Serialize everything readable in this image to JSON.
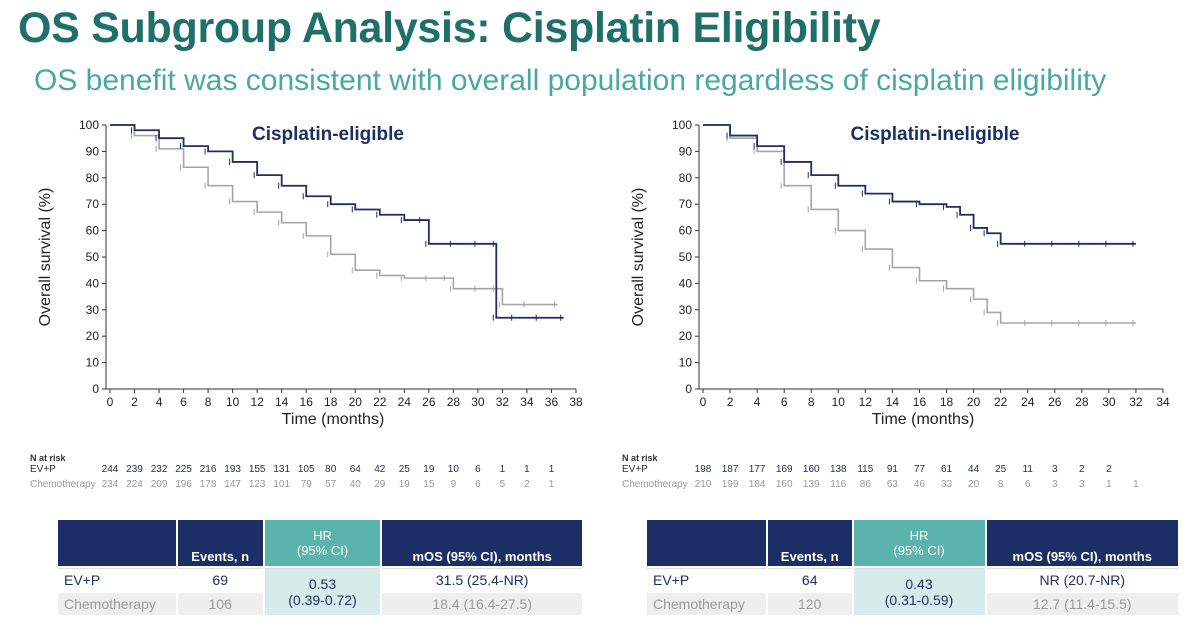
{
  "title": "OS Subgroup Analysis: Cisplatin Eligibility",
  "subtitle": "OS benefit was consistent with overall population regardless of cisplatin eligibility",
  "colors": {
    "evp": "#1b2f66",
    "chemo": "#a5a5a5",
    "title": "#1f6f6a",
    "hr_header": "#5ab3ad"
  },
  "chart_data": [
    {
      "type": "line",
      "title": "Cisplatin-eligible",
      "xlabel": "Time (months)",
      "ylabel": "Overall survival (%)",
      "xlim": [
        0,
        38
      ],
      "ylim": [
        0,
        100
      ],
      "xticks": [
        "0",
        "2",
        "4",
        "6",
        "8",
        "10",
        "12",
        "14",
        "16",
        "18",
        "20",
        "22",
        "24",
        "26",
        "28",
        "30",
        "32",
        "34",
        "36",
        "38"
      ],
      "yticks": [
        "0",
        "10",
        "20",
        "30",
        "40",
        "50",
        "60",
        "70",
        "80",
        "90",
        "100"
      ],
      "series": [
        {
          "name": "EV+P",
          "x": [
            0,
            2,
            4,
            6,
            8,
            10,
            12,
            14,
            16,
            18,
            20,
            22,
            24,
            25.5,
            26,
            28,
            30,
            31.5,
            31.5,
            33,
            35,
            37
          ],
          "y": [
            100,
            98,
            95,
            92,
            90,
            86,
            81,
            77,
            73,
            70,
            68,
            66,
            64,
            64,
            55,
            55,
            55,
            55,
            27,
            27,
            27,
            27
          ]
        },
        {
          "name": "Chemotherapy",
          "x": [
            0,
            2,
            4,
            6,
            8,
            10,
            12,
            14,
            16,
            18,
            20,
            22,
            24,
            26,
            27.5,
            28,
            30,
            31.5,
            32,
            34,
            36.5
          ],
          "y": [
            100,
            96,
            91,
            84,
            77,
            71,
            67,
            63,
            58,
            51,
            45,
            43,
            42,
            42,
            42,
            38,
            38,
            38,
            32,
            32,
            32
          ]
        }
      ],
      "at_risk": {
        "label": "N at risk",
        "rows": [
          {
            "name": "EV+P",
            "values": [
              "244",
              "239",
              "232",
              "225",
              "216",
              "193",
              "155",
              "131",
              "105",
              "80",
              "64",
              "42",
              "25",
              "19",
              "10",
              "6",
              "1",
              "1",
              "1"
            ]
          },
          {
            "name": "Chemotherapy",
            "values": [
              "234",
              "224",
              "209",
              "196",
              "178",
              "147",
              "123",
              "101",
              "79",
              "57",
              "40",
              "29",
              "19",
              "15",
              "9",
              "6",
              "5",
              "2",
              "1"
            ]
          }
        ]
      }
    },
    {
      "type": "line",
      "title": "Cisplatin-ineligible",
      "xlabel": "Time (months)",
      "ylabel": "Overall survival (%)",
      "xlim": [
        0,
        34
      ],
      "ylim": [
        0,
        100
      ],
      "xticks": [
        "0",
        "2",
        "4",
        "6",
        "8",
        "10",
        "12",
        "14",
        "16",
        "18",
        "20",
        "22",
        "24",
        "26",
        "28",
        "30",
        "32",
        "34"
      ],
      "yticks": [
        "0",
        "10",
        "20",
        "30",
        "40",
        "50",
        "60",
        "70",
        "80",
        "90",
        "100"
      ],
      "series": [
        {
          "name": "EV+P",
          "x": [
            0,
            2,
            4,
            6,
            8,
            10,
            12,
            14,
            16,
            18,
            19,
            20,
            21,
            22,
            24,
            26,
            28,
            30,
            32
          ],
          "y": [
            100,
            96,
            92,
            86,
            81,
            77,
            74,
            71,
            70,
            69,
            66,
            61,
            59,
            55,
            55,
            55,
            55,
            55,
            55
          ]
        },
        {
          "name": "Chemotherapy",
          "x": [
            0,
            2,
            4,
            6,
            8,
            10,
            12,
            14,
            16,
            18,
            20,
            21,
            22,
            24,
            26,
            28,
            30,
            32
          ],
          "y": [
            100,
            95,
            90,
            77,
            68,
            60,
            53,
            46,
            41,
            38,
            34,
            29,
            25,
            25,
            25,
            25,
            25,
            25
          ]
        }
      ],
      "at_risk": {
        "label": "N at risk",
        "rows": [
          {
            "name": "EV+P",
            "values": [
              "198",
              "187",
              "177",
              "169",
              "160",
              "138",
              "115",
              "91",
              "77",
              "61",
              "44",
              "25",
              "11",
              "3",
              "2",
              "2"
            ]
          },
          {
            "name": "Chemotherapy",
            "values": [
              "210",
              "199",
              "184",
              "160",
              "139",
              "116",
              "86",
              "63",
              "46",
              "33",
              "20",
              "8",
              "6",
              "3",
              "3",
              "1",
              "1"
            ]
          }
        ]
      }
    }
  ],
  "tables": [
    {
      "headers": {
        "events": "Events, n",
        "hr": "HR\n(95% CI)",
        "mos": "mOS (95% CI), months"
      },
      "rows": [
        {
          "label": "EV+P",
          "events": "69",
          "mos": "31.5 (25.4-NR)"
        },
        {
          "label": "Chemotherapy",
          "events": "106",
          "mos": "18.4 (16.4-27.5)"
        }
      ],
      "hr_value": "0.53",
      "hr_ci": "(0.39-0.72)"
    },
    {
      "headers": {
        "events": "Events, n",
        "hr": "HR\n(95% CI)",
        "mos": "mOS (95% CI), months"
      },
      "rows": [
        {
          "label": "EV+P",
          "events": "64",
          "mos": "NR (20.7-NR)"
        },
        {
          "label": "Chemotherapy",
          "events": "120",
          "mos": "12.7 (11.4-15.5)"
        }
      ],
      "hr_value": "0.43",
      "hr_ci": "(0.31-0.59)"
    }
  ]
}
